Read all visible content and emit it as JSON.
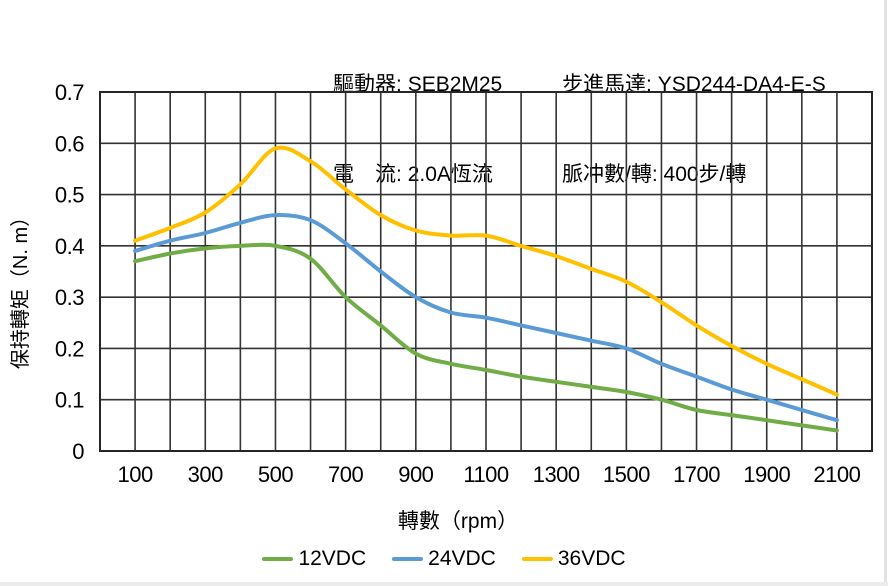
{
  "header": {
    "col1": [
      {
        "label": "驅動器:",
        "value": "SEB2M25"
      },
      {
        "label": "電　流:",
        "value": "2.0A恆流"
      }
    ],
    "col2": [
      {
        "label": "步進馬達:",
        "value": "YSD244-DA4-E-S"
      },
      {
        "label": "脈冲數/轉:",
        "value": "400步/轉"
      }
    ]
  },
  "chart_data": {
    "type": "line",
    "title": "",
    "xlabel": "轉數（rpm）",
    "ylabel": "保持轉矩（N. m）",
    "xlim": [
      0,
      2200
    ],
    "ylim": [
      0,
      0.7
    ],
    "grid": true,
    "legend_position": "bottom",
    "x": [
      100,
      200,
      300,
      400,
      500,
      600,
      700,
      800,
      900,
      1000,
      1100,
      1200,
      1300,
      1400,
      1500,
      1600,
      1700,
      1800,
      1900,
      2000,
      2100
    ],
    "x_tick_labels": [
      100,
      300,
      500,
      700,
      900,
      1100,
      1300,
      1500,
      1700,
      1900,
      2100
    ],
    "y_ticks": [
      0,
      0.1,
      0.2,
      0.3,
      0.4,
      0.5,
      0.6,
      0.7
    ],
    "series": [
      {
        "name": "12VDC",
        "color": "#70AD47",
        "values": [
          0.37,
          0.385,
          0.395,
          0.4,
          0.4,
          0.375,
          0.3,
          0.245,
          0.19,
          0.17,
          0.158,
          0.145,
          0.135,
          0.125,
          0.115,
          0.1,
          0.08,
          0.07,
          0.06,
          0.05,
          0.04
        ]
      },
      {
        "name": "24VDC",
        "color": "#5B9BD5",
        "values": [
          0.39,
          0.41,
          0.425,
          0.445,
          0.46,
          0.45,
          0.405,
          0.35,
          0.3,
          0.27,
          0.26,
          0.245,
          0.23,
          0.215,
          0.2,
          0.17,
          0.145,
          0.12,
          0.1,
          0.08,
          0.06
        ]
      },
      {
        "name": "36VDC",
        "color": "#FFC000",
        "values": [
          0.41,
          0.435,
          0.465,
          0.52,
          0.59,
          0.565,
          0.51,
          0.46,
          0.43,
          0.42,
          0.42,
          0.4,
          0.38,
          0.355,
          0.33,
          0.29,
          0.245,
          0.205,
          0.17,
          0.14,
          0.11
        ]
      }
    ]
  },
  "colors": {
    "grid": "#333333",
    "border": "#262626",
    "background": "#ffffff",
    "text": "#000000"
  }
}
